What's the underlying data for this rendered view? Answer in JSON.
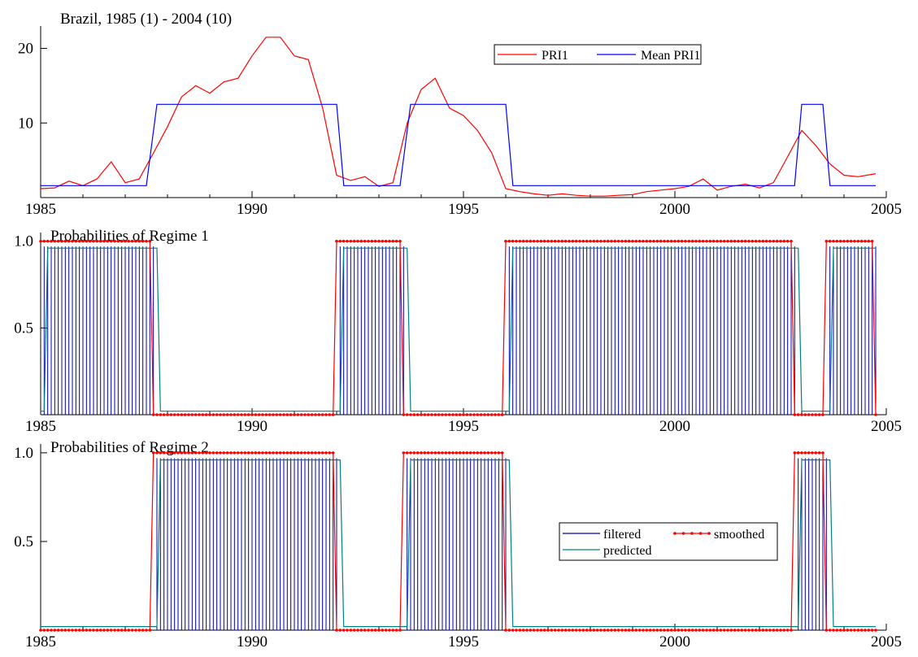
{
  "chart_data": [
    {
      "type": "line",
      "title": "Brazil, 1985 (1) - 2004 (10)",
      "x_ticks": [
        "1985",
        "1990",
        "1995",
        "2000",
        "2005"
      ],
      "y_ticks": [
        "10",
        "20"
      ],
      "xlim": [
        1985,
        2005
      ],
      "ylim": [
        0,
        23
      ],
      "legend_placement": "top-right",
      "series": [
        {
          "name": "PRI1",
          "color": "#ff0000",
          "x": [
            1985.0,
            1985.33,
            1985.67,
            1986.0,
            1986.33,
            1986.67,
            1987.0,
            1987.33,
            1987.67,
            1988.0,
            1988.33,
            1988.67,
            1989.0,
            1989.33,
            1989.67,
            1990.0,
            1990.33,
            1990.67,
            1991.0,
            1991.33,
            1991.67,
            1992.0,
            1992.33,
            1992.67,
            1993.0,
            1993.33,
            1993.67,
            1994.0,
            1994.33,
            1994.67,
            1995.0,
            1995.33,
            1995.67,
            1996.0,
            1996.33,
            1996.67,
            1997.0,
            1997.33,
            1997.67,
            1998.0,
            1998.33,
            1998.67,
            1999.0,
            1999.33,
            1999.67,
            2000.0,
            2000.33,
            2000.67,
            2001.0,
            2001.33,
            2001.67,
            2002.0,
            2002.33,
            2002.67,
            2003.0,
            2003.33,
            2003.67,
            2004.0,
            2004.33,
            2004.75
          ],
          "values": [
            1.2,
            1.3,
            2.2,
            1.6,
            2.5,
            4.8,
            2.0,
            2.5,
            6.0,
            9.5,
            13.5,
            15.0,
            14.0,
            15.5,
            16.0,
            19.0,
            21.5,
            21.5,
            19.0,
            18.5,
            12.0,
            3.0,
            2.3,
            2.8,
            1.5,
            2.0,
            10.0,
            14.5,
            16.0,
            12.0,
            11.0,
            9.0,
            6.0,
            1.2,
            0.8,
            0.5,
            0.3,
            0.5,
            0.3,
            0.2,
            0.2,
            0.3,
            0.4,
            0.8,
            1.0,
            1.2,
            1.5,
            2.5,
            1.0,
            1.5,
            1.8,
            1.3,
            2.0,
            5.5,
            9.0,
            7.0,
            4.5,
            3.0,
            2.8,
            3.2
          ]
        },
        {
          "name": "Mean PRI1",
          "color": "#0000ff",
          "x": [
            1985.0,
            1987.5,
            1987.75,
            1992.0,
            1992.17,
            1993.5,
            1993.75,
            1996.0,
            1996.17,
            2002.83,
            2003.0,
            2003.5,
            2003.67,
            2004.75
          ],
          "values": [
            1.6,
            1.6,
            12.5,
            12.5,
            1.6,
            1.6,
            12.5,
            12.5,
            1.6,
            1.6,
            12.5,
            12.5,
            1.6,
            1.6
          ]
        }
      ]
    },
    {
      "type": "line",
      "title": "Probabilities of Regime 1",
      "x_ticks": [
        "1985",
        "1990",
        "1995",
        "2000",
        "2005"
      ],
      "y_ticks": [
        "0.5",
        "1.0"
      ],
      "xlim": [
        1985,
        2005
      ],
      "ylim": [
        0,
        1.05
      ],
      "regime_intervals": [
        [
          1985.0,
          1987.67
        ],
        [
          1992.0,
          1993.58
        ],
        [
          1996.0,
          2002.83
        ],
        [
          2003.58,
          2004.75
        ]
      ],
      "series": [
        {
          "name": "filtered",
          "color": "#0000aa",
          "style": "spikes"
        },
        {
          "name": "smoothed",
          "color": "#ff0000",
          "style": "line-with-markers"
        },
        {
          "name": "predicted",
          "color": "#008080",
          "style": "line"
        }
      ]
    },
    {
      "type": "line",
      "title": "Probabilities of Regime 2",
      "x_ticks": [
        "1985",
        "1990",
        "1995",
        "2000",
        "2005"
      ],
      "y_ticks": [
        "0.5",
        "1.0"
      ],
      "xlim": [
        1985,
        2005
      ],
      "ylim": [
        0,
        1.05
      ],
      "legend_placement": "right",
      "regime_intervals": [
        [
          1987.67,
          1992.0
        ],
        [
          1993.58,
          1996.0
        ],
        [
          2002.83,
          2003.58
        ]
      ],
      "series": [
        {
          "name": "filtered",
          "color": "#0000aa",
          "style": "spikes"
        },
        {
          "name": "smoothed",
          "color": "#ff0000",
          "style": "line-with-markers"
        },
        {
          "name": "predicted",
          "color": "#008080",
          "style": "line"
        }
      ]
    }
  ]
}
